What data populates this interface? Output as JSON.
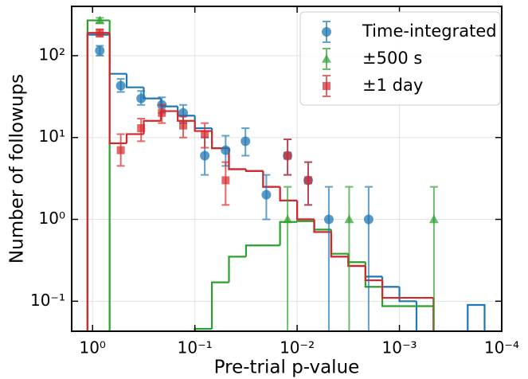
{
  "chart_data": {
    "type": "histogram",
    "x_label": "Pre-trial p-value",
    "y_label": "Number of followups",
    "xscale": "log",
    "yscale": "log",
    "xlim": [
      1.6,
      0.0001
    ],
    "ylim": [
      0.043,
      400
    ],
    "xticks": [
      {
        "value": 1,
        "label": "10⁰"
      },
      {
        "value": 0.1,
        "label": "10⁻¹"
      },
      {
        "value": 0.01,
        "label": "10⁻²"
      },
      {
        "value": 0.001,
        "label": "10⁻³"
      },
      {
        "value": 0.0001,
        "label": "10⁻⁴"
      }
    ],
    "yticks": [
      {
        "value": 0.1,
        "label": "10⁻¹"
      },
      {
        "value": 1,
        "label": "10⁰"
      },
      {
        "value": 10,
        "label": "10¹"
      },
      {
        "value": 100,
        "label": "10²"
      }
    ],
    "grid": true,
    "legend": "upper right",
    "bins": [
      1.12,
      0.681,
      0.464,
      0.316,
      0.215,
      0.147,
      0.1,
      0.0681,
      0.0464,
      0.0316,
      0.0215,
      0.0147,
      0.01,
      0.00681,
      0.00464,
      0.00316,
      0.00215,
      0.00147,
      0.001,
      0.000681,
      0.000464,
      0.000316,
      0.000215,
      0.000147
    ],
    "series": [
      {
        "name": "Time-integrated",
        "color": "#1f77b4",
        "marker": "o",
        "values": [
          180,
          60,
          41,
          30,
          24,
          18.5,
          13,
          7.4,
          4.1,
          3.9,
          2.5,
          1.7,
          1.0,
          0.7,
          0.35,
          0.27,
          0.2,
          0.15,
          0.1,
          0,
          0,
          0,
          0.09
        ],
        "points": {
          "x": [
            0.85,
            0.53,
            0.335,
            0.21,
            0.13,
            0.08,
            0.05,
            0.032,
            0.02,
            0.0124,
            0.0078,
            0.0049,
            0.002
          ],
          "values": [
            115,
            43,
            30,
            25,
            20,
            6,
            7,
            9,
            2,
            6,
            3,
            1,
            1
          ],
          "err_low": [
            100,
            36,
            25,
            20,
            15,
            3.5,
            4.5,
            6,
            1,
            3.5,
            1.5,
            0.02,
            0.02
          ],
          "err_high": [
            132,
            52,
            37,
            31,
            25,
            10,
            10.5,
            13,
            3.5,
            9.5,
            5,
            2.5,
            2.5
          ]
        }
      },
      {
        "name": "±500 s",
        "color": "#2ca02c",
        "marker": "^",
        "values": [
          270,
          0,
          0,
          0,
          0,
          0,
          0.046,
          0.17,
          0.35,
          0.48,
          0.48,
          0.93,
          0.95,
          0.75,
          0.38,
          0.3,
          0.15,
          0.087,
          0.087,
          0.087,
          0,
          0,
          0
        ],
        "points": {
          "x": [
            0.85,
            0.0124,
            0.0031,
            0.00046
          ],
          "values": [
            270,
            1,
            1,
            1
          ],
          "err_low": [
            250,
            0.02,
            0.02,
            0.02
          ],
          "err_high": [
            290,
            2.5,
            2.5,
            2.5
          ]
        }
      },
      {
        "name": "±1 day",
        "color": "#d62728",
        "marker": "s",
        "values": [
          190,
          8.5,
          11,
          16,
          21,
          16,
          12,
          7.4,
          4.1,
          3.9,
          2.5,
          1.7,
          1.0,
          0.7,
          0.35,
          0.27,
          0.18,
          0.11,
          0.11,
          0.11,
          0,
          0,
          0
        ],
        "points": {
          "x": [
            0.85,
            0.53,
            0.335,
            0.21,
            0.13,
            0.08,
            0.05,
            0.0124,
            0.0078
          ],
          "values": [
            190,
            7,
            13,
            20,
            14,
            11,
            3,
            6,
            3
          ],
          "err_low": [
            170,
            4.5,
            9,
            15,
            10,
            7.5,
            1.5,
            3.5,
            1.5
          ],
          "err_high": [
            210,
            11,
            17,
            25,
            18,
            15,
            5,
            9.5,
            5
          ]
        }
      }
    ]
  }
}
